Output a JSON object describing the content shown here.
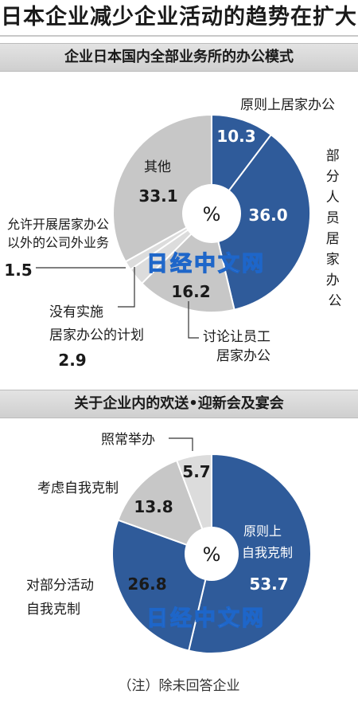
{
  "title": "日本企业减少企业活动的趋势在扩大",
  "watermark": "日经中文网",
  "note": "（注）除未回答企业",
  "colors": {
    "blue": "#2f5b9a",
    "gray": "#c7c7c7",
    "lightgray": "#dcdcdc"
  },
  "chart_data": [
    {
      "type": "pie",
      "title": "企业日本国内全部业务所的办公模式",
      "center_label": "%",
      "slices": [
        {
          "name": "原则上居家办公",
          "value": 10.3,
          "value_text": "10.3"
        },
        {
          "name": "部分人员居家办公",
          "value": 36.0,
          "value_text": "36.0"
        },
        {
          "name": "讨论让员工居家办公",
          "value": 16.2,
          "value_text": "16.2"
        },
        {
          "name": "没有实施居家办公的计划",
          "value": 2.9,
          "value_text": "2.9"
        },
        {
          "name": "允许开展居家办公以外的公司外业务",
          "value": 1.5,
          "value_text": "1.5"
        },
        {
          "name": "其他",
          "value": 33.1,
          "value_text": "33.1"
        }
      ],
      "labels": {
        "s0": "原则上居家办公",
        "s1": [
          "部",
          "分",
          "人",
          "员",
          "居",
          "家",
          "办",
          "公"
        ],
        "s2": [
          "讨论让员工",
          "居家办公"
        ],
        "s3": [
          "没有实施",
          "居家办公的计划"
        ],
        "s4": [
          "允许开展居家办公",
          "以外的公司外业务"
        ],
        "s5": "其他"
      }
    },
    {
      "type": "pie",
      "title": "关于企业内的欢送•迎新会及宴会",
      "center_label": "%",
      "slices": [
        {
          "name": "原则上自我克制",
          "value": 53.7,
          "value_text": "53.7"
        },
        {
          "name": "对部分活动自我克制",
          "value": 26.8,
          "value_text": "26.8"
        },
        {
          "name": "考虑自我克制",
          "value": 13.8,
          "value_text": "13.8"
        },
        {
          "name": "照常举办",
          "value": 5.7,
          "value_text": "5.7"
        }
      ],
      "labels": {
        "s0": [
          "原则上",
          "自我克制"
        ],
        "s1": [
          "对部分活动",
          "自我克制"
        ],
        "s2": "考虑自我克制",
        "s3": "照常举办"
      }
    }
  ]
}
